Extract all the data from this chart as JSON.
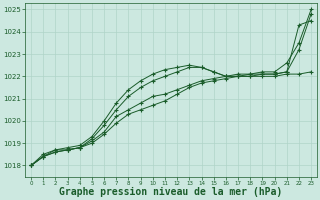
{
  "bg_color": "#cce8e0",
  "grid_color": "#b0d4c8",
  "line_color": "#1a5c2a",
  "marker": "+",
  "xlabel": "Graphe pression niveau de la mer (hPa)",
  "xlabel_fontsize": 7,
  "ylim": [
    1017.5,
    1025.3
  ],
  "xlim": [
    -0.5,
    23.5
  ],
  "yticks": [
    1018,
    1019,
    1020,
    1021,
    1022,
    1023,
    1024,
    1025
  ],
  "xticks": [
    0,
    1,
    2,
    3,
    4,
    5,
    6,
    7,
    8,
    9,
    10,
    11,
    12,
    13,
    14,
    15,
    16,
    17,
    18,
    19,
    20,
    21,
    22,
    23
  ],
  "series": [
    [
      1018.0,
      1018.5,
      1018.7,
      1018.7,
      1018.8,
      1019.0,
      1019.4,
      1019.9,
      1020.3,
      1020.5,
      1020.7,
      1020.9,
      1021.2,
      1021.5,
      1021.7,
      1021.8,
      1021.9,
      1022.0,
      1022.0,
      1022.0,
      1022.0,
      1022.1,
      1022.1,
      1022.2
    ],
    [
      1018.0,
      1018.4,
      1018.6,
      1018.7,
      1018.8,
      1019.1,
      1019.5,
      1020.2,
      1020.5,
      1020.8,
      1021.1,
      1021.2,
      1021.4,
      1021.6,
      1021.8,
      1021.9,
      1022.0,
      1022.0,
      1022.1,
      1022.1,
      1022.1,
      1022.2,
      1023.2,
      1024.8
    ],
    [
      1018.0,
      1018.4,
      1018.6,
      1018.7,
      1018.8,
      1019.2,
      1019.8,
      1020.5,
      1021.1,
      1021.5,
      1021.8,
      1022.0,
      1022.2,
      1022.4,
      1022.4,
      1022.2,
      1022.0,
      1022.0,
      1022.0,
      1022.1,
      1022.1,
      1022.2,
      1024.3,
      1024.5
    ],
    [
      1018.0,
      1018.4,
      1018.7,
      1018.8,
      1018.9,
      1019.3,
      1020.0,
      1020.8,
      1021.4,
      1021.8,
      1022.1,
      1022.3,
      1022.4,
      1022.5,
      1022.4,
      1022.2,
      1022.0,
      1022.1,
      1022.1,
      1022.2,
      1022.2,
      1022.6,
      1023.5,
      1025.0
    ]
  ]
}
